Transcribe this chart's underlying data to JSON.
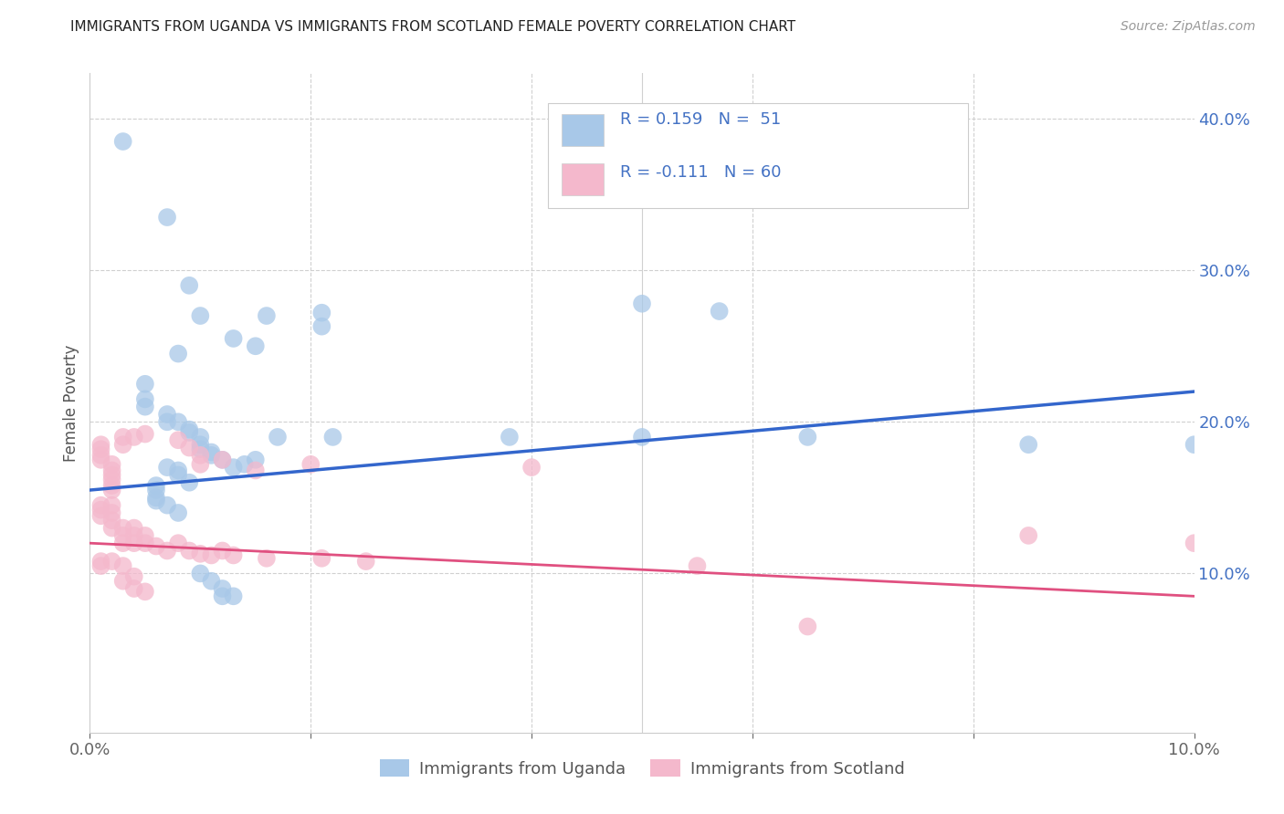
{
  "title": "IMMIGRANTS FROM UGANDA VS IMMIGRANTS FROM SCOTLAND FEMALE POVERTY CORRELATION CHART",
  "source": "Source: ZipAtlas.com",
  "ylabel": "Female Poverty",
  "xlim": [
    0.0,
    0.1
  ],
  "ylim": [
    -0.005,
    0.43
  ],
  "uganda_color": "#a8c8e8",
  "scotland_color": "#f4b8cc",
  "uganda_line_color": "#3366cc",
  "scotland_line_color": "#e05080",
  "uganda_label": "Immigrants from Uganda",
  "scotland_label": "Immigrants from Scotland",
  "uganda_scatter": [
    [
      0.003,
      0.385
    ],
    [
      0.007,
      0.335
    ],
    [
      0.009,
      0.29
    ],
    [
      0.01,
      0.27
    ],
    [
      0.013,
      0.255
    ],
    [
      0.016,
      0.27
    ],
    [
      0.021,
      0.272
    ],
    [
      0.021,
      0.263
    ],
    [
      0.05,
      0.278
    ],
    [
      0.057,
      0.273
    ],
    [
      0.008,
      0.245
    ],
    [
      0.015,
      0.25
    ],
    [
      0.005,
      0.225
    ],
    [
      0.005,
      0.215
    ],
    [
      0.005,
      0.21
    ],
    [
      0.007,
      0.205
    ],
    [
      0.007,
      0.2
    ],
    [
      0.008,
      0.2
    ],
    [
      0.009,
      0.195
    ],
    [
      0.009,
      0.193
    ],
    [
      0.01,
      0.19
    ],
    [
      0.01,
      0.185
    ],
    [
      0.01,
      0.182
    ],
    [
      0.011,
      0.18
    ],
    [
      0.011,
      0.178
    ],
    [
      0.012,
      0.175
    ],
    [
      0.013,
      0.17
    ],
    [
      0.014,
      0.172
    ],
    [
      0.015,
      0.175
    ],
    [
      0.017,
      0.19
    ],
    [
      0.022,
      0.19
    ],
    [
      0.038,
      0.19
    ],
    [
      0.05,
      0.19
    ],
    [
      0.065,
      0.19
    ],
    [
      0.085,
      0.185
    ],
    [
      0.007,
      0.17
    ],
    [
      0.008,
      0.168
    ],
    [
      0.008,
      0.165
    ],
    [
      0.009,
      0.16
    ],
    [
      0.006,
      0.158
    ],
    [
      0.006,
      0.155
    ],
    [
      0.006,
      0.15
    ],
    [
      0.006,
      0.148
    ],
    [
      0.007,
      0.145
    ],
    [
      0.008,
      0.14
    ],
    [
      0.01,
      0.1
    ],
    [
      0.011,
      0.095
    ],
    [
      0.012,
      0.09
    ],
    [
      0.012,
      0.085
    ],
    [
      0.013,
      0.085
    ],
    [
      0.1,
      0.185
    ]
  ],
  "scotland_scatter": [
    [
      0.001,
      0.185
    ],
    [
      0.001,
      0.182
    ],
    [
      0.001,
      0.178
    ],
    [
      0.001,
      0.175
    ],
    [
      0.002,
      0.172
    ],
    [
      0.002,
      0.168
    ],
    [
      0.002,
      0.165
    ],
    [
      0.002,
      0.162
    ],
    [
      0.002,
      0.158
    ],
    [
      0.002,
      0.155
    ],
    [
      0.003,
      0.19
    ],
    [
      0.003,
      0.185
    ],
    [
      0.004,
      0.19
    ],
    [
      0.005,
      0.192
    ],
    [
      0.008,
      0.188
    ],
    [
      0.009,
      0.183
    ],
    [
      0.01,
      0.178
    ],
    [
      0.01,
      0.172
    ],
    [
      0.012,
      0.175
    ],
    [
      0.015,
      0.168
    ],
    [
      0.02,
      0.172
    ],
    [
      0.04,
      0.17
    ],
    [
      0.085,
      0.125
    ],
    [
      0.1,
      0.12
    ],
    [
      0.001,
      0.145
    ],
    [
      0.001,
      0.142
    ],
    [
      0.001,
      0.138
    ],
    [
      0.002,
      0.145
    ],
    [
      0.002,
      0.14
    ],
    [
      0.002,
      0.135
    ],
    [
      0.002,
      0.13
    ],
    [
      0.003,
      0.13
    ],
    [
      0.003,
      0.125
    ],
    [
      0.003,
      0.12
    ],
    [
      0.004,
      0.13
    ],
    [
      0.004,
      0.125
    ],
    [
      0.004,
      0.12
    ],
    [
      0.005,
      0.125
    ],
    [
      0.005,
      0.12
    ],
    [
      0.006,
      0.118
    ],
    [
      0.007,
      0.115
    ],
    [
      0.008,
      0.12
    ],
    [
      0.009,
      0.115
    ],
    [
      0.01,
      0.113
    ],
    [
      0.011,
      0.112
    ],
    [
      0.012,
      0.115
    ],
    [
      0.013,
      0.112
    ],
    [
      0.016,
      0.11
    ],
    [
      0.021,
      0.11
    ],
    [
      0.025,
      0.108
    ],
    [
      0.001,
      0.108
    ],
    [
      0.001,
      0.105
    ],
    [
      0.002,
      0.108
    ],
    [
      0.003,
      0.105
    ],
    [
      0.003,
      0.095
    ],
    [
      0.004,
      0.098
    ],
    [
      0.004,
      0.09
    ],
    [
      0.005,
      0.088
    ],
    [
      0.055,
      0.105
    ],
    [
      0.065,
      0.065
    ]
  ],
  "uganda_line_x0": 0.0,
  "uganda_line_y0": 0.155,
  "uganda_line_x1": 0.1,
  "uganda_line_y1": 0.22,
  "scotland_line_x0": 0.0,
  "scotland_line_y0": 0.12,
  "scotland_line_x1": 0.1,
  "scotland_line_y1": 0.085
}
